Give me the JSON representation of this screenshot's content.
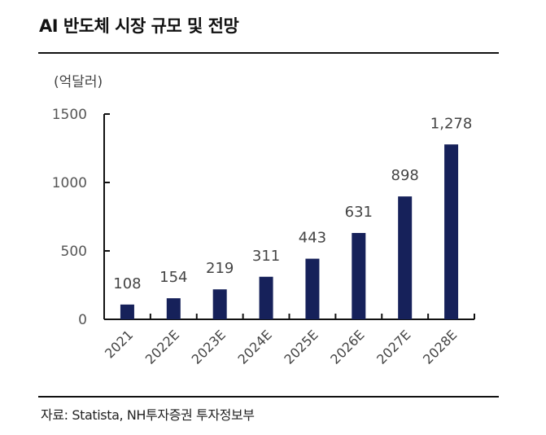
{
  "header": {
    "title": "AI 반도체 시장 규모 및 전망"
  },
  "unit_label": "(억달러)",
  "footer": {
    "source": "자료: Statista, NH투자증권 투자정보부"
  },
  "colors": {
    "bar": "#16215a",
    "axis": "#111111"
  },
  "chart_data": {
    "type": "bar",
    "title": "AI 반도체 시장 규모 및 전망",
    "xlabel": "",
    "ylabel": "(억달러)",
    "categories": [
      "2021",
      "2022E",
      "2023E",
      "2024E",
      "2025E",
      "2026E",
      "2027E",
      "2028E"
    ],
    "values": [
      108,
      154,
      219,
      311,
      443,
      631,
      898,
      1278
    ],
    "data_labels": [
      "108",
      "154",
      "219",
      "311",
      "443",
      "631",
      "898",
      "1,278"
    ],
    "ylim": [
      0,
      1500
    ],
    "yticks": [
      0,
      500,
      1000,
      1500
    ],
    "ytick_labels": [
      "0",
      "500",
      "1000",
      "1500"
    ],
    "grid": false,
    "legend": "none"
  }
}
